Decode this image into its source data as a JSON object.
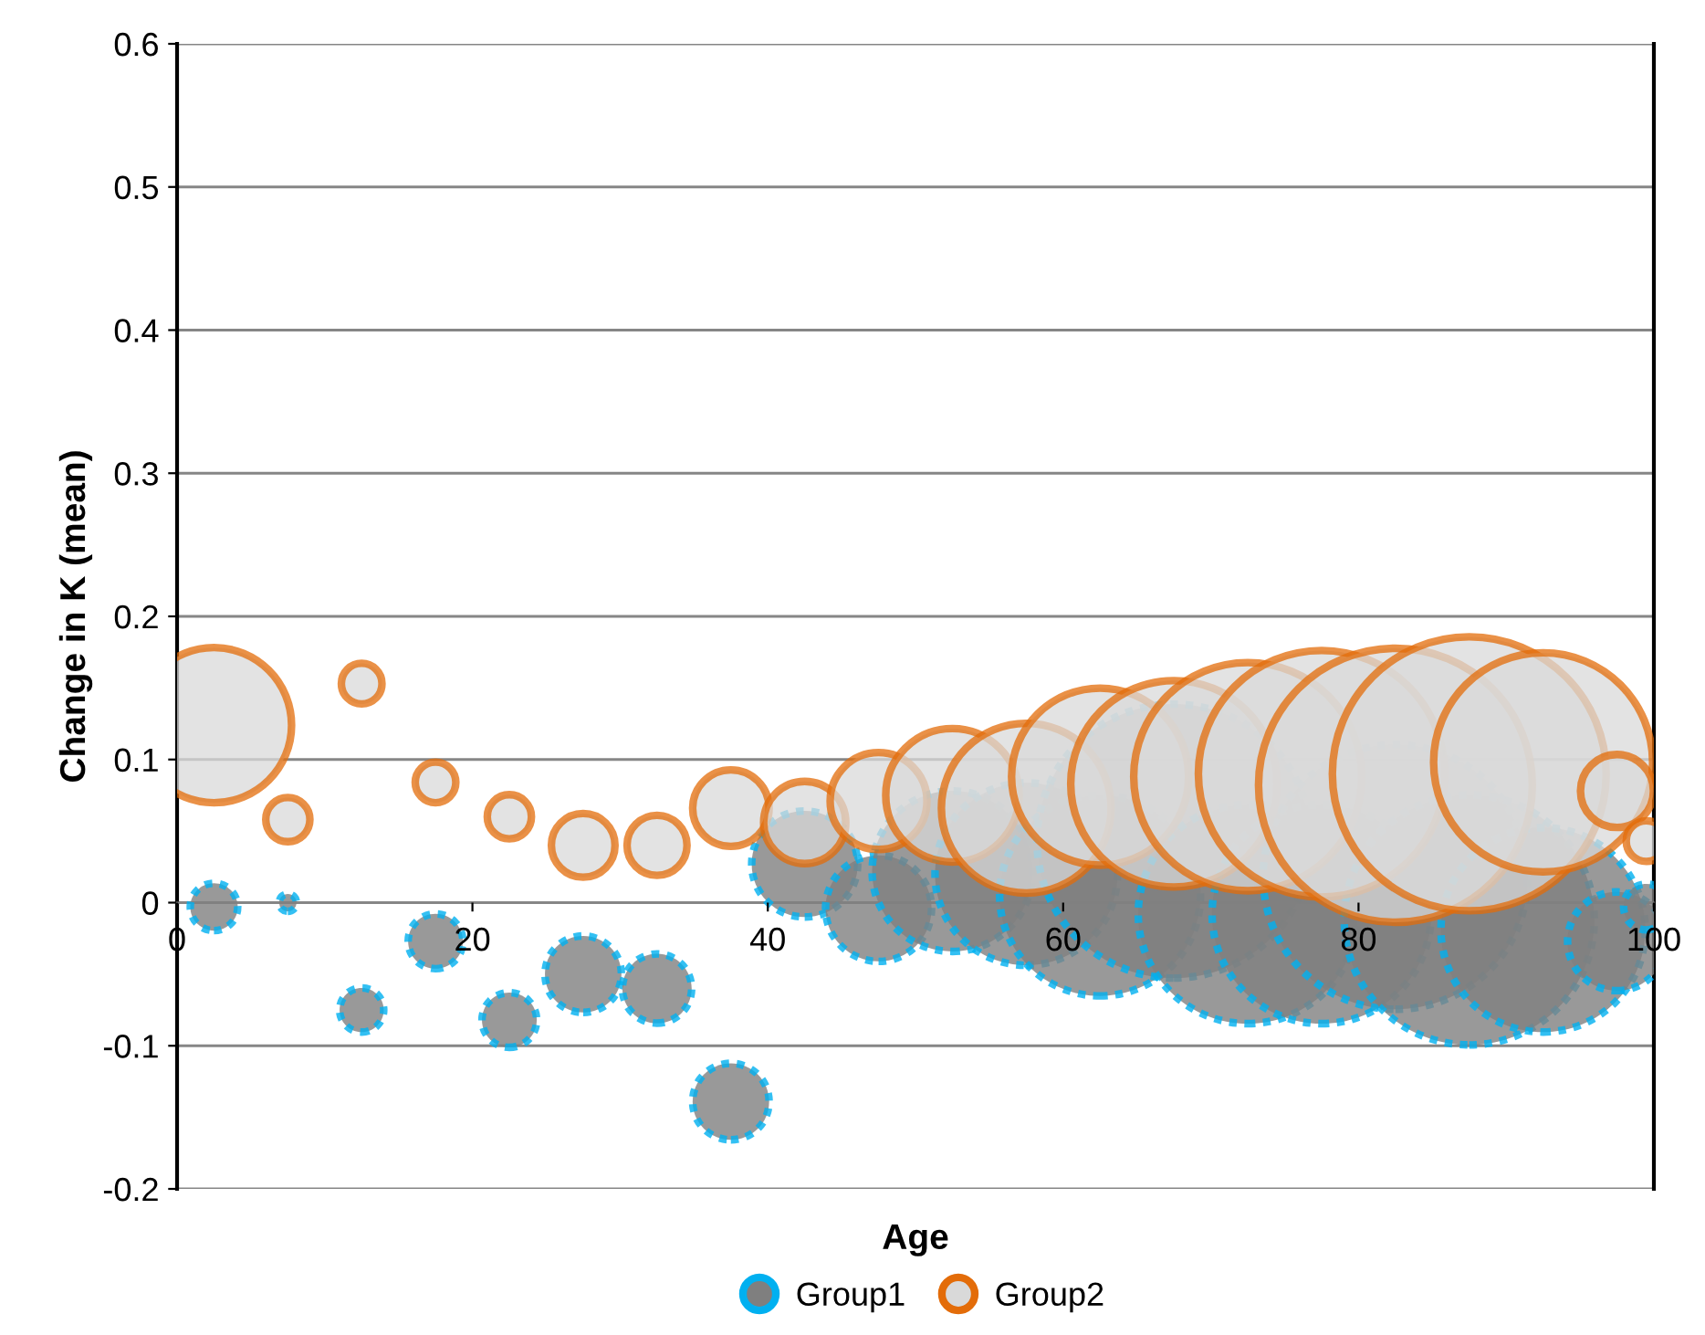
{
  "chart_data": {
    "type": "bubble",
    "xlabel": "Age",
    "ylabel": "Change in K (mean)",
    "xlim": [
      0,
      100
    ],
    "xticks": [
      0,
      20,
      40,
      60,
      80,
      100
    ],
    "ylim": [
      -0.2,
      0.6
    ],
    "yticks": [
      -0.2,
      -0.1,
      0,
      0.1,
      0.2,
      0.3,
      0.4,
      0.5,
      0.6
    ],
    "grid": "y",
    "legend": "bottom",
    "marker": "circle",
    "series": [
      {
        "name": "Group1",
        "color": "#00b0f0",
        "x": [
          2.5,
          7.5,
          12.5,
          17.5,
          22.5,
          27.5,
          32.5,
          37.5,
          42.5,
          47.5,
          52.5,
          57.5,
          62.5,
          67.5,
          72.5,
          77.5,
          82.5,
          87.5,
          92.5,
          97.5,
          99.5
        ],
        "values": [
          -0.003,
          0.0,
          -0.075,
          -0.027,
          -0.082,
          -0.05,
          -0.06,
          -0.139,
          0.027,
          -0.004,
          0.022,
          0.02,
          0.005,
          0.043,
          -0.008,
          -0.008,
          0.018,
          -0.012,
          -0.019,
          -0.027,
          -0.003
        ],
        "sizes": [
          0.03,
          0.004,
          0.026,
          0.04,
          0.04,
          0.078,
          0.064,
          0.078,
          0.15,
          0.15,
          0.344,
          0.444,
          0.538,
          1.0,
          0.64,
          0.64,
          0.934,
          0.834,
          0.557,
          0.13,
          0.028
        ]
      },
      {
        "name": "Group2",
        "color": "#e36c09",
        "x": [
          2.5,
          7.5,
          12.5,
          17.5,
          22.5,
          27.5,
          32.5,
          37.5,
          42.5,
          47.5,
          52.5,
          57.5,
          62.5,
          67.5,
          72.5,
          77.5,
          82.5,
          87.5,
          92.5,
          97.5,
          99.5
        ],
        "values": [
          0.124,
          0.058,
          0.153,
          0.084,
          0.06,
          0.04,
          0.04,
          0.066,
          0.056,
          0.071,
          0.075,
          0.066,
          0.088,
          0.083,
          0.088,
          0.09,
          0.082,
          0.09,
          0.098,
          0.078,
          0.043
        ],
        "sizes": [
          0.321,
          0.026,
          0.022,
          0.022,
          0.026,
          0.054,
          0.048,
          0.078,
          0.09,
          0.125,
          0.237,
          0.384,
          0.418,
          0.568,
          0.694,
          0.81,
          1.0,
          1.0,
          0.64,
          0.071,
          0.022
        ]
      }
    ]
  }
}
